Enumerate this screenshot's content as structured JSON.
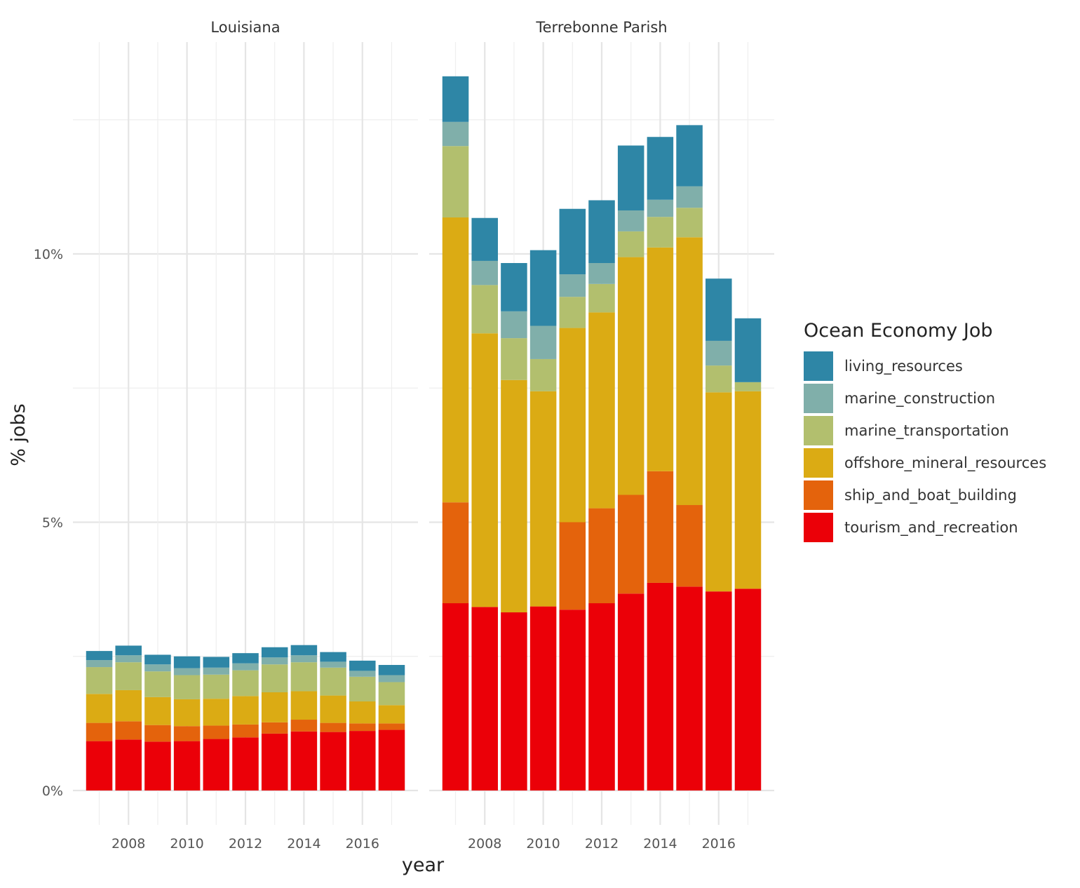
{
  "chart_data": {
    "type": "bar",
    "stacked": true,
    "facet_titles": [
      "Louisiana",
      "Terrebonne Parish"
    ],
    "xlabel": "year",
    "ylabel": "% jobs",
    "ylim": [
      0,
      13.6
    ],
    "yticks": [
      0,
      5,
      10
    ],
    "ytick_labels": [
      "0%",
      "5%",
      "10%"
    ],
    "xticks": [
      2008,
      2010,
      2012,
      2014,
      2016
    ],
    "xtick_labels": [
      "2008",
      "2010",
      "2012",
      "2014",
      "2016"
    ],
    "xlim": [
      2006.1,
      2017.9
    ],
    "grid": true,
    "legend_position": "right",
    "legend_title": "Ocean Economy Job",
    "categories": [
      2007,
      2008,
      2009,
      2010,
      2011,
      2012,
      2013,
      2014,
      2015,
      2016,
      2017
    ],
    "series": [
      {
        "name": "living_resources",
        "color": "#2E86A6"
      },
      {
        "name": "marine_construction",
        "color": "#80AFAA"
      },
      {
        "name": "marine_transportation",
        "color": "#B2BF6E"
      },
      {
        "name": "offshore_mineral_resources",
        "color": "#DBAB14"
      },
      {
        "name": "ship_and_boat_building",
        "color": "#E4630C"
      },
      {
        "name": "tourism_and_recreation",
        "color": "#EB0008"
      }
    ],
    "panels": [
      {
        "title": "Louisiana",
        "values": {
          "tourism_and_recreation": [
            0.92,
            0.95,
            0.91,
            0.92,
            0.96,
            0.99,
            1.06,
            1.1,
            1.09,
            1.11,
            1.13
          ],
          "ship_and_boat_building": [
            0.34,
            0.34,
            0.31,
            0.28,
            0.25,
            0.24,
            0.21,
            0.22,
            0.17,
            0.14,
            0.12
          ],
          "offshore_mineral_resources": [
            0.54,
            0.58,
            0.52,
            0.5,
            0.5,
            0.53,
            0.56,
            0.53,
            0.51,
            0.41,
            0.34
          ],
          "marine_transportation": [
            0.5,
            0.52,
            0.48,
            0.45,
            0.45,
            0.48,
            0.52,
            0.54,
            0.52,
            0.46,
            0.43
          ],
          "marine_construction": [
            0.13,
            0.13,
            0.13,
            0.13,
            0.13,
            0.13,
            0.13,
            0.13,
            0.11,
            0.11,
            0.13
          ],
          "living_resources": [
            0.17,
            0.18,
            0.18,
            0.22,
            0.2,
            0.19,
            0.19,
            0.19,
            0.18,
            0.19,
            0.19
          ]
        }
      },
      {
        "title": "Terrebonne Parish",
        "values": {
          "tourism_and_recreation": [
            3.49,
            3.42,
            3.32,
            3.43,
            3.37,
            3.49,
            3.67,
            3.87,
            3.8,
            3.71,
            3.76
          ],
          "ship_and_boat_building": [
            1.88,
            0.0,
            0.0,
            0.0,
            1.63,
            1.77,
            1.84,
            2.08,
            1.52,
            0.0,
            0.0
          ],
          "offshore_mineral_resources": [
            5.31,
            5.1,
            4.33,
            4.01,
            3.62,
            3.65,
            4.43,
            4.17,
            4.99,
            3.71,
            3.68
          ],
          "marine_transportation": [
            1.33,
            0.9,
            0.78,
            0.6,
            0.58,
            0.53,
            0.48,
            0.57,
            0.55,
            0.5,
            0.17
          ],
          "marine_construction": [
            0.45,
            0.45,
            0.5,
            0.62,
            0.42,
            0.39,
            0.39,
            0.32,
            0.4,
            0.46,
            0.0
          ],
          "living_resources": [
            0.85,
            0.8,
            0.9,
            1.41,
            1.22,
            1.17,
            1.21,
            1.17,
            1.14,
            1.16,
            1.19
          ]
        }
      }
    ]
  }
}
